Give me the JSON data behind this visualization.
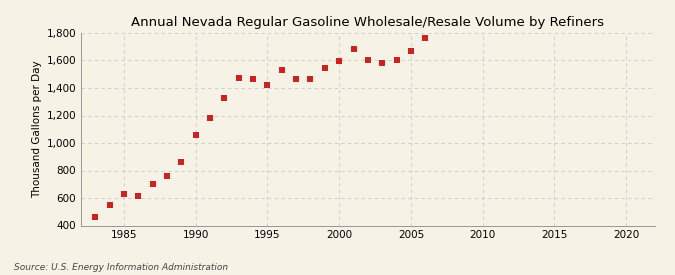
{
  "title": "Annual Nevada Regular Gasoline Wholesale/Resale Volume by Refiners",
  "ylabel": "Thousand Gallons per Day",
  "source": "Source: U.S. Energy Information Administration",
  "background_color": "#f7f2e6",
  "plot_bg_color": "#f7f2e6",
  "marker_color": "#cc2222",
  "years": [
    1983,
    1984,
    1985,
    1986,
    1987,
    1988,
    1989,
    1990,
    1991,
    1992,
    1993,
    1994,
    1995,
    1996,
    1997,
    1998,
    1999,
    2000,
    2001,
    2002,
    2003,
    2004,
    2005,
    2006
  ],
  "values": [
    460,
    550,
    630,
    615,
    700,
    760,
    860,
    1060,
    1180,
    1330,
    1470,
    1465,
    1425,
    1530,
    1465,
    1465,
    1545,
    1595,
    1680,
    1600,
    1580,
    1600,
    1670,
    1760
  ],
  "xlim": [
    1982,
    2022
  ],
  "ylim": [
    400,
    1800
  ],
  "xticks": [
    1985,
    1990,
    1995,
    2000,
    2005,
    2010,
    2015,
    2020
  ],
  "yticks": [
    400,
    600,
    800,
    1000,
    1200,
    1400,
    1600,
    1800
  ],
  "grid_color": "#c8c8c8",
  "title_fontsize": 9.5,
  "ylabel_fontsize": 7.5,
  "tick_fontsize": 7.5,
  "source_fontsize": 6.5,
  "marker_size": 14
}
